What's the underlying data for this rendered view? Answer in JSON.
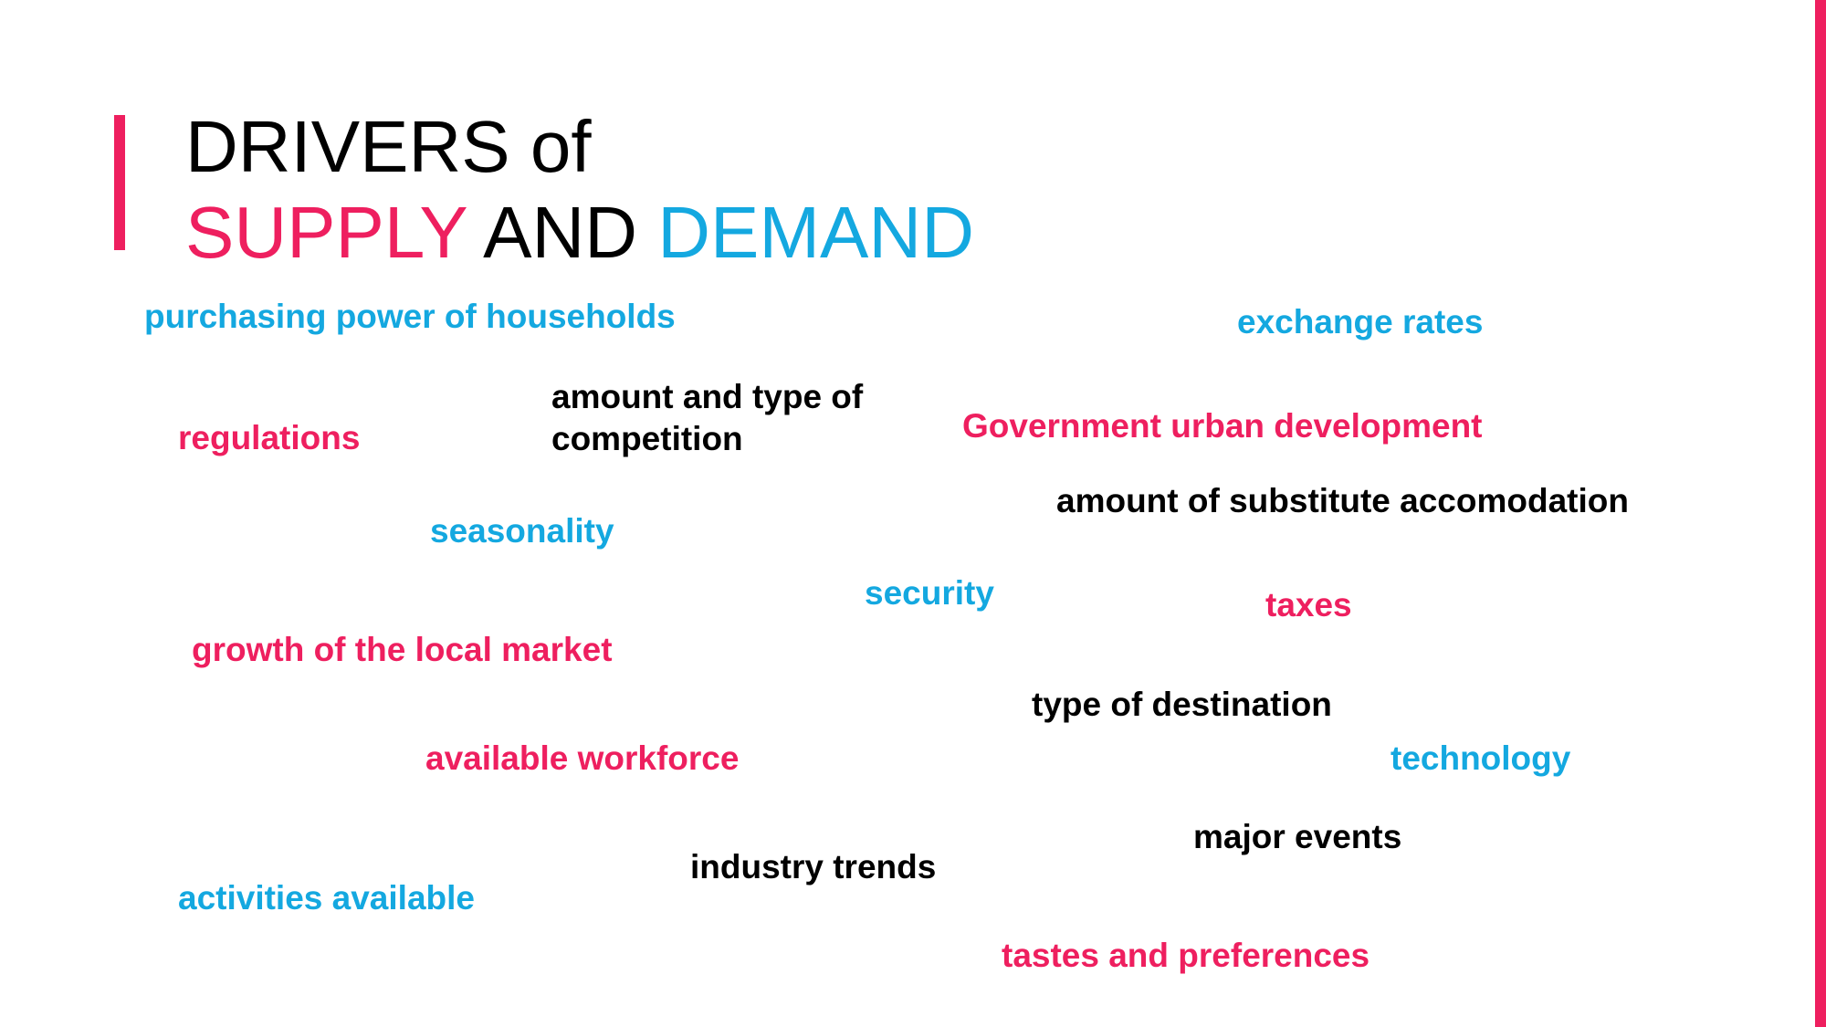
{
  "colors": {
    "supply": "#EE1F5F",
    "demand": "#14A8E0",
    "neutral": "#000000",
    "background": "#FFFFFF"
  },
  "title": {
    "line1_prefix": "DRIVERS",
    "line1_suffix": " of",
    "line2_supply": "SUPPLY",
    "line2_and": " AND ",
    "line2_demand": "DEMAND"
  },
  "terms": [
    {
      "id": "purchasing-power",
      "text": "purchasing power of households",
      "category": "demand"
    },
    {
      "id": "exchange-rates",
      "text": "exchange rates",
      "category": "demand"
    },
    {
      "id": "regulations",
      "text": "regulations",
      "category": "supply"
    },
    {
      "id": "competition",
      "text": "amount and type of\ncompetition",
      "category": "neutral"
    },
    {
      "id": "gov-urban-dev",
      "text": "Government urban development",
      "category": "supply"
    },
    {
      "id": "substitute-accomodation",
      "text": "amount of substitute accomodation",
      "category": "neutral"
    },
    {
      "id": "seasonality",
      "text": "seasonality",
      "category": "demand"
    },
    {
      "id": "security",
      "text": "security",
      "category": "demand"
    },
    {
      "id": "taxes",
      "text": "taxes",
      "category": "supply"
    },
    {
      "id": "local-market-growth",
      "text": "growth of the local market",
      "category": "supply"
    },
    {
      "id": "destination-type",
      "text": "type of destination",
      "category": "neutral"
    },
    {
      "id": "workforce",
      "text": "available workforce",
      "category": "supply"
    },
    {
      "id": "technology",
      "text": "technology",
      "category": "demand"
    },
    {
      "id": "major-events",
      "text": "major events",
      "category": "neutral"
    },
    {
      "id": "industry-trends",
      "text": "industry trends",
      "category": "neutral"
    },
    {
      "id": "activities",
      "text": "activities available",
      "category": "demand"
    },
    {
      "id": "tastes",
      "text": "tastes and preferences",
      "category": "supply"
    }
  ]
}
